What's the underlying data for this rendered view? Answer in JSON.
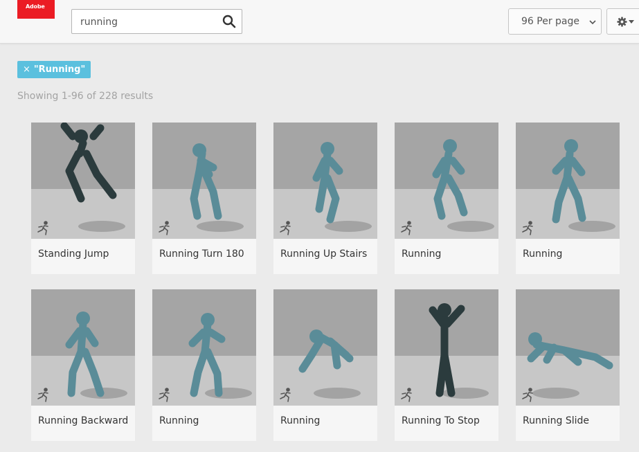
{
  "header": {
    "logo_text": "Adobe",
    "brand_color": "#eb1c24",
    "search": {
      "value": "running",
      "icon": "search-icon"
    },
    "per_page": {
      "selected": "96 Per page",
      "icon": "chevron-down-icon"
    },
    "settings": {
      "icon": "gear-icon"
    }
  },
  "filter": {
    "remove_symbol": "×",
    "label": "\"Running\"",
    "color": "#5bc0de"
  },
  "results_text": "Showing 1-96 of 228 results",
  "animations": [
    {
      "title": "Standing Jump",
      "character": "dark"
    },
    {
      "title": "Running Turn 180",
      "character": "blue"
    },
    {
      "title": "Running Up Stairs",
      "character": "blue"
    },
    {
      "title": "Running",
      "character": "blue"
    },
    {
      "title": "Running",
      "character": "blue"
    },
    {
      "title": "Running Backward",
      "character": "blue"
    },
    {
      "title": "Running",
      "character": "blue"
    },
    {
      "title": "Running",
      "character": "blue"
    },
    {
      "title": "Running To Stop",
      "character": "dark"
    },
    {
      "title": "Running Slide",
      "character": "blue"
    }
  ]
}
